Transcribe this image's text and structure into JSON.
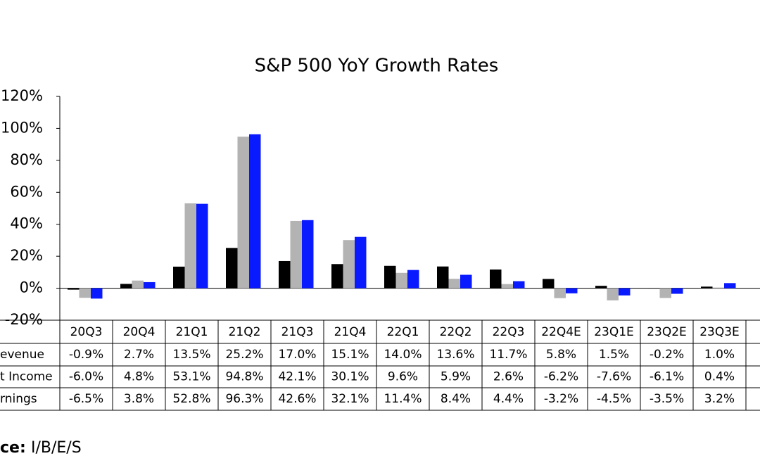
{
  "chart_data": {
    "type": "bar",
    "title": "S&P 500 YoY Growth Rates",
    "categories": [
      "20Q3",
      "20Q4",
      "21Q1",
      "21Q2",
      "21Q3",
      "21Q4",
      "22Q1",
      "22Q2",
      "22Q3",
      "22Q4E",
      "23Q1E",
      "23Q2E",
      "23Q3E"
    ],
    "series": [
      {
        "name": "evenue",
        "color": "#000000",
        "values": [
          -0.9,
          2.7,
          13.5,
          25.2,
          17.0,
          15.1,
          14.0,
          13.6,
          11.7,
          5.8,
          1.5,
          -0.2,
          1.0
        ],
        "value_labels": [
          "-0.9%",
          "2.7%",
          "13.5%",
          "25.2%",
          "17.0%",
          "15.1%",
          "14.0%",
          "13.6%",
          "11.7%",
          "5.8%",
          "1.5%",
          "-0.2%",
          "1.0%"
        ]
      },
      {
        "name": "t Income",
        "color": "#b3b3b3",
        "values": [
          -6.0,
          4.8,
          53.1,
          94.8,
          42.1,
          30.1,
          9.6,
          5.9,
          2.6,
          -6.2,
          -7.6,
          -6.1,
          0.4
        ],
        "value_labels": [
          "-6.0%",
          "4.8%",
          "53.1%",
          "94.8%",
          "42.1%",
          "30.1%",
          "9.6%",
          "5.9%",
          "2.6%",
          "-6.2%",
          "-7.6%",
          "-6.1%",
          "0.4%"
        ]
      },
      {
        "name": "rnings",
        "color": "#0a1aff",
        "values": [
          -6.5,
          3.8,
          52.8,
          96.3,
          42.6,
          32.1,
          11.4,
          8.4,
          4.4,
          -3.2,
          -4.5,
          -3.5,
          3.2
        ],
        "value_labels": [
          "-6.5%",
          "3.8%",
          "52.8%",
          "96.3%",
          "42.6%",
          "32.1%",
          "11.4%",
          "8.4%",
          "4.4%",
          "-3.2%",
          "-4.5%",
          "-3.5%",
          "3.2%"
        ]
      }
    ],
    "ylim": [
      -20,
      120
    ],
    "yticks": [
      {
        "value": -20,
        "label": "-20%"
      },
      {
        "value": 0,
        "label": "0%"
      },
      {
        "value": 20,
        "label": "20%"
      },
      {
        "value": 40,
        "label": "40%"
      },
      {
        "value": 60,
        "label": "60%"
      },
      {
        "value": 80,
        "label": "80%"
      },
      {
        "value": 100,
        "label": "100%"
      },
      {
        "value": 120,
        "label": "120%"
      }
    ],
    "source_label": "ce:",
    "source": "I/B/E/S"
  }
}
